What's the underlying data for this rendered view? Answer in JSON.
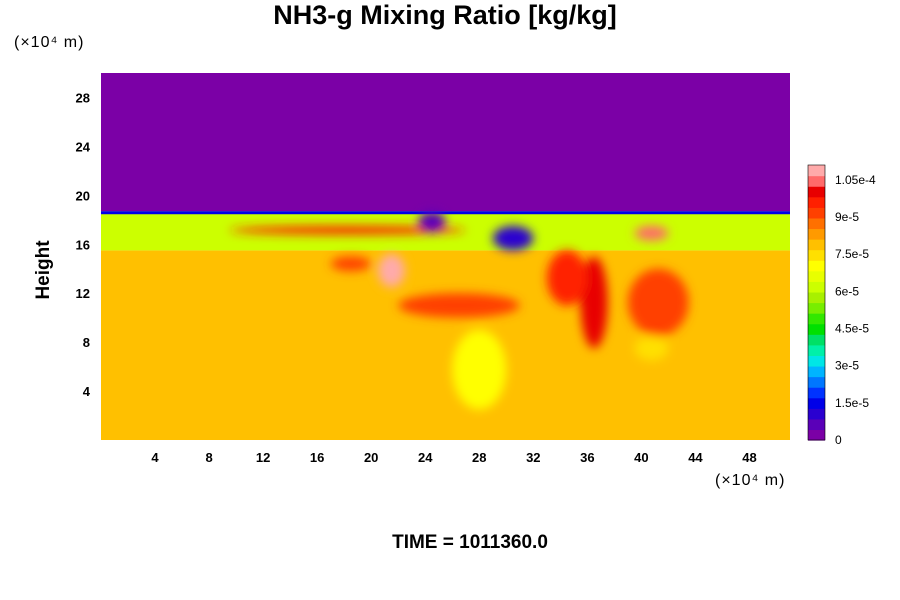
{
  "chart_data": {
    "type": "heatmap",
    "title": "NH3-g Mixing Ratio [kg/kg]",
    "ylabel": "Height",
    "x_unit": "(×10⁴ m)",
    "y_unit": "(×10⁴ m)",
    "xlim": [
      0,
      51
    ],
    "ylim": [
      0,
      30
    ],
    "x_ticks": [
      4,
      8,
      12,
      16,
      20,
      24,
      28,
      32,
      36,
      40,
      44,
      48
    ],
    "y_ticks": [
      4,
      8,
      12,
      16,
      20,
      24,
      28
    ],
    "colorbar": {
      "range": [
        0,
        0.000111
      ],
      "tick_values": [
        0,
        1.5e-05,
        3e-05,
        4.5e-05,
        6e-05,
        7.5e-05,
        9e-05,
        0.000105
      ],
      "tick_labels": [
        "0",
        "1.5e-5",
        "3e-5",
        "4.5e-5",
        "6e-5",
        "7.5e-5",
        "9e-5",
        "1.05e-4"
      ],
      "colors": [
        "#7b00a6",
        "#5a00b8",
        "#2a00d0",
        "#0000e8",
        "#0033ff",
        "#0077ff",
        "#00b4ff",
        "#00e6e6",
        "#00f0a8",
        "#00e066",
        "#00e000",
        "#33e800",
        "#77ee00",
        "#a8f000",
        "#ccff00",
        "#e8ff00",
        "#ffff00",
        "#ffe000",
        "#ffc000",
        "#ff9a00",
        "#ff7000",
        "#ff4000",
        "#ff2000",
        "#e80000",
        "#ff6a6a",
        "#ffaaaa"
      ]
    },
    "regions": {
      "upper_layer_value": 0,
      "upper_layer_bottom_height": 18.7,
      "band_value": 6.3e-05,
      "band_height_range": [
        15.5,
        18.7
      ],
      "lower_layer_value": 7.95e-05,
      "lower_layer_top_height": 15.5
    },
    "features": [
      {
        "x": [
          9.5,
          27
        ],
        "y": [
          16.8,
          17.5
        ],
        "value": 9.5e-05
      },
      {
        "x": [
          20.5,
          22.5
        ],
        "y": [
          12.5,
          15.2
        ],
        "value": 0.00011
      },
      {
        "x": [
          17,
          20
        ],
        "y": [
          13.8,
          15.0
        ],
        "value": 9e-05
      },
      {
        "x": [
          35.5,
          37.5
        ],
        "y": [
          7.5,
          15
        ],
        "value": 0.0001
      },
      {
        "x": [
          33,
          36
        ],
        "y": [
          11,
          15.5
        ],
        "value": 9.5e-05
      },
      {
        "x": [
          39,
          43.5
        ],
        "y": [
          8.5,
          14
        ],
        "value": 9e-05
      },
      {
        "x": [
          22,
          31
        ],
        "y": [
          10,
          12
        ],
        "value": 9e-05
      },
      {
        "x": [
          23.5,
          25.5
        ],
        "y": [
          17,
          18.7
        ],
        "value": 5e-06
      },
      {
        "x": [
          29,
          32
        ],
        "y": [
          15.5,
          17.5
        ],
        "value": 1e-05
      },
      {
        "x": [
          39.5,
          42
        ],
        "y": [
          16.3,
          17.5
        ],
        "value": 0.000105
      },
      {
        "x": [
          26,
          30
        ],
        "y": [
          2.5,
          9
        ],
        "value": 7e-05
      },
      {
        "x": [
          39.5,
          42
        ],
        "y": [
          6.5,
          8.5
        ],
        "value": 7.4e-05
      }
    ]
  },
  "footer": {
    "time_label": "TIME = 1011360.0"
  }
}
